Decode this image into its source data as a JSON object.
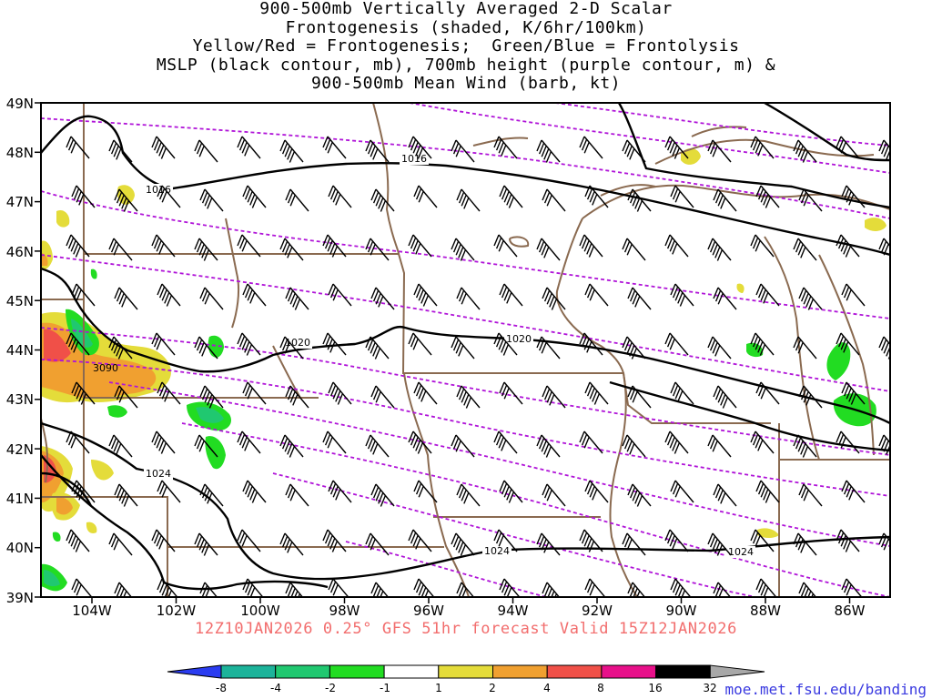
{
  "title": {
    "lines": [
      "900-500mb Vertically Averaged 2-D Scalar",
      "Frontogenesis (shaded, K/6hr/100km)",
      "Yellow/Red = Frontogenesis;  Green/Blue = Frontolysis",
      "MSLP (black contour, mb), 700mb height (purple contour, m) &",
      "900-500mb Mean Wind (barb, kt)"
    ]
  },
  "run_info": "12Z10JAN2026 0.25° GFS 51hr forecast Valid 15Z12JAN2026",
  "credit": "moe.met.fsu.edu/banding",
  "axes": {
    "lat_labels": [
      "49N",
      "48N",
      "47N",
      "46N",
      "45N",
      "44N",
      "43N",
      "42N",
      "41N",
      "40N",
      "39N"
    ],
    "lon_labels": [
      "104W",
      "102W",
      "100W",
      "98W",
      "96W",
      "94W",
      "92W",
      "90W",
      "88W",
      "86W"
    ]
  },
  "contour_labels": {
    "mslp": [
      "1016",
      "1016",
      "1020",
      "1020",
      "1024",
      "1024",
      "1024"
    ],
    "height": [
      "3090"
    ]
  },
  "colorbar": {
    "ticks": [
      "-8",
      "-4",
      "-2",
      "-1",
      "1",
      "2",
      "4",
      "8",
      "16",
      "32"
    ],
    "colors": [
      "#2a3cf0",
      "#1cb39a",
      "#20c870",
      "#22dc22",
      "#ffffff",
      "#e4dc3a",
      "#f0a030",
      "#f05048",
      "#e8108a",
      "#000000",
      "#a8a8a8"
    ]
  },
  "colors": {
    "mslp_contour": "#000000",
    "height_contour": "#b014d8",
    "borders": "#8a6a50",
    "frontogenesis_yellow": "#e4dc3a",
    "frontogenesis_orange": "#f0a030",
    "frontogenesis_red": "#f05048",
    "frontolysis_green": "#22dc22",
    "frontolysis_teal": "#20c870"
  }
}
